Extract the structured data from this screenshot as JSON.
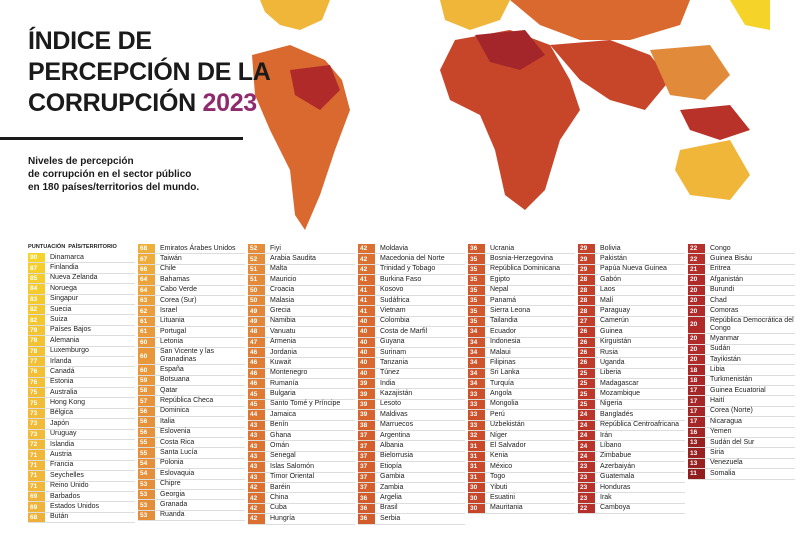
{
  "title": {
    "line1": "ÍNDICE DE",
    "line2": "PERCEPCIÓN DE LA",
    "line3": "CORRUPCIÓN",
    "year": "2023"
  },
  "subtitle": [
    "Niveles de percepción",
    "de corrupción en el sector público",
    "en 180 países/territorios del mundo."
  ],
  "table": {
    "headers": [
      "PUNTUACIÓN",
      "PAÍS/TERRITORIO"
    ],
    "columns": [
      [
        [
          90,
          "Dinamarca"
        ],
        [
          87,
          "Finlandia"
        ],
        [
          85,
          "Nueva Zelanda"
        ],
        [
          84,
          "Noruega"
        ],
        [
          83,
          "Singapur"
        ],
        [
          82,
          "Suecia"
        ],
        [
          82,
          "Suiza"
        ],
        [
          79,
          "Países Bajos"
        ],
        [
          78,
          "Alemania"
        ],
        [
          78,
          "Luxemburgo"
        ],
        [
          77,
          "Irlanda"
        ],
        [
          76,
          "Canadá"
        ],
        [
          76,
          "Estonia"
        ],
        [
          75,
          "Australia"
        ],
        [
          75,
          "Hong Kong"
        ],
        [
          73,
          "Bélgica"
        ],
        [
          73,
          "Japón"
        ],
        [
          73,
          "Uruguay"
        ],
        [
          72,
          "Islandia"
        ],
        [
          71,
          "Austria"
        ],
        [
          71,
          "Francia"
        ],
        [
          71,
          "Seychelles"
        ],
        [
          71,
          "Reino Unido"
        ],
        [
          69,
          "Barbados"
        ],
        [
          69,
          "Estados Unidos"
        ],
        [
          68,
          "Bután"
        ]
      ],
      [
        [
          68,
          "Emiratos Árabes Unidos"
        ],
        [
          67,
          "Taiwán"
        ],
        [
          66,
          "Chile"
        ],
        [
          64,
          "Bahamas"
        ],
        [
          64,
          "Cabo Verde"
        ],
        [
          63,
          "Corea (Sur)"
        ],
        [
          62,
          "Israel"
        ],
        [
          61,
          "Lituania"
        ],
        [
          61,
          "Portugal"
        ],
        [
          60,
          "Letonia"
        ],
        [
          60,
          "San Vicente y las Granadinas"
        ],
        [
          60,
          "España"
        ],
        [
          59,
          "Botsuana"
        ],
        [
          58,
          "Qatar"
        ],
        [
          57,
          "República Checa"
        ],
        [
          56,
          "Dominica"
        ],
        [
          56,
          "Italia"
        ],
        [
          56,
          "Eslovenia"
        ],
        [
          55,
          "Costa Rica"
        ],
        [
          55,
          "Santa Lucía"
        ],
        [
          54,
          "Polonia"
        ],
        [
          54,
          "Eslovaquia"
        ],
        [
          53,
          "Chipre"
        ],
        [
          53,
          "Georgia"
        ],
        [
          53,
          "Granada"
        ],
        [
          53,
          "Ruanda"
        ]
      ],
      [
        [
          52,
          "Fiyi"
        ],
        [
          52,
          "Arabia Saudita"
        ],
        [
          51,
          "Malta"
        ],
        [
          51,
          "Mauricio"
        ],
        [
          50,
          "Croacia"
        ],
        [
          50,
          "Malasia"
        ],
        [
          49,
          "Grecia"
        ],
        [
          49,
          "Namibia"
        ],
        [
          48,
          "Vanuatu"
        ],
        [
          47,
          "Armenia"
        ],
        [
          46,
          "Jordania"
        ],
        [
          46,
          "Kuwait"
        ],
        [
          46,
          "Montenegro"
        ],
        [
          46,
          "Rumanía"
        ],
        [
          45,
          "Bulgaria"
        ],
        [
          45,
          "Santo Tomé y Príncipe"
        ],
        [
          44,
          "Jamaica"
        ],
        [
          43,
          "Benín"
        ],
        [
          43,
          "Ghana"
        ],
        [
          43,
          "Omán"
        ],
        [
          43,
          "Senegal"
        ],
        [
          43,
          "Islas Salomón"
        ],
        [
          43,
          "Timor Oriental"
        ],
        [
          42,
          "Baréin"
        ],
        [
          42,
          "China"
        ],
        [
          42,
          "Cuba"
        ],
        [
          42,
          "Hungría"
        ]
      ],
      [
        [
          42,
          "Moldavia"
        ],
        [
          42,
          "Macedonia del Norte"
        ],
        [
          42,
          "Trinidad y Tobago"
        ],
        [
          41,
          "Burkina Faso"
        ],
        [
          41,
          "Kosovo"
        ],
        [
          41,
          "Sudáfrica"
        ],
        [
          41,
          "Vietnam"
        ],
        [
          40,
          "Colombia"
        ],
        [
          40,
          "Costa de Marfil"
        ],
        [
          40,
          "Guyana"
        ],
        [
          40,
          "Surinam"
        ],
        [
          40,
          "Tanzania"
        ],
        [
          40,
          "Túnez"
        ],
        [
          39,
          "India"
        ],
        [
          39,
          "Kazajistán"
        ],
        [
          39,
          "Lesoto"
        ],
        [
          39,
          "Maldivas"
        ],
        [
          38,
          "Marruecos"
        ],
        [
          37,
          "Argentina"
        ],
        [
          37,
          "Albania"
        ],
        [
          37,
          "Bielorrusia"
        ],
        [
          37,
          "Etiopía"
        ],
        [
          37,
          "Gambia"
        ],
        [
          37,
          "Zambia"
        ],
        [
          36,
          "Argelia"
        ],
        [
          36,
          "Brasil"
        ],
        [
          36,
          "Serbia"
        ]
      ],
      [
        [
          36,
          "Ucrania"
        ],
        [
          35,
          "Bosnia-Herzegovina"
        ],
        [
          35,
          "República Dominicana"
        ],
        [
          35,
          "Egipto"
        ],
        [
          35,
          "Nepal"
        ],
        [
          35,
          "Panamá"
        ],
        [
          35,
          "Sierra Leona"
        ],
        [
          35,
          "Tailandia"
        ],
        [
          34,
          "Ecuador"
        ],
        [
          34,
          "Indonesia"
        ],
        [
          34,
          "Malaui"
        ],
        [
          34,
          "Filipinas"
        ],
        [
          34,
          "Sri Lanka"
        ],
        [
          34,
          "Turquía"
        ],
        [
          33,
          "Angola"
        ],
        [
          33,
          "Mongolia"
        ],
        [
          33,
          "Perú"
        ],
        [
          33,
          "Uzbekistán"
        ],
        [
          32,
          "Níger"
        ],
        [
          31,
          "El Salvador"
        ],
        [
          31,
          "Kenia"
        ],
        [
          31,
          "México"
        ],
        [
          31,
          "Togo"
        ],
        [
          30,
          "Yibuti"
        ],
        [
          30,
          "Esuatini"
        ],
        [
          30,
          "Mauritania"
        ]
      ],
      [
        [
          29,
          "Bolivia"
        ],
        [
          29,
          "Pakistán"
        ],
        [
          29,
          "Papúa Nueva Guinea"
        ],
        [
          28,
          "Gabón"
        ],
        [
          28,
          "Laos"
        ],
        [
          28,
          "Malí"
        ],
        [
          28,
          "Paraguay"
        ],
        [
          27,
          "Camerún"
        ],
        [
          26,
          "Guinea"
        ],
        [
          26,
          "Kirguistán"
        ],
        [
          26,
          "Rusia"
        ],
        [
          26,
          "Uganda"
        ],
        [
          25,
          "Liberia"
        ],
        [
          25,
          "Madagascar"
        ],
        [
          25,
          "Mozambique"
        ],
        [
          25,
          "Nigeria"
        ],
        [
          24,
          "Bangladés"
        ],
        [
          24,
          "República Centroafricana"
        ],
        [
          24,
          "Irán"
        ],
        [
          24,
          "Líbano"
        ],
        [
          24,
          "Zimbabue"
        ],
        [
          23,
          "Azerbaiyán"
        ],
        [
          23,
          "Guatemala"
        ],
        [
          23,
          "Honduras"
        ],
        [
          23,
          "Irak"
        ],
        [
          22,
          "Camboya"
        ]
      ],
      [
        [
          22,
          "Congo"
        ],
        [
          22,
          "Guinea Bisáu"
        ],
        [
          21,
          "Eritrea"
        ],
        [
          20,
          "Afganistán"
        ],
        [
          20,
          "Burundi"
        ],
        [
          20,
          "Chad"
        ],
        [
          20,
          "Comoras"
        ],
        [
          20,
          "República Democrática del Congo"
        ],
        [
          20,
          "Myanmar"
        ],
        [
          20,
          "Sudán"
        ],
        [
          20,
          "Tayikistán"
        ],
        [
          18,
          "Libia"
        ],
        [
          18,
          "Turkmenistán"
        ],
        [
          17,
          "Guinea Ecuatorial"
        ],
        [
          17,
          "Haití"
        ],
        [
          17,
          "Corea (Norte)"
        ],
        [
          17,
          "Nicaragua"
        ],
        [
          16,
          "Yemen"
        ],
        [
          13,
          "Sudán del Sur"
        ],
        [
          13,
          "Siria"
        ],
        [
          13,
          "Venezuela"
        ],
        [
          11,
          "Somalia"
        ]
      ]
    ]
  }
}
